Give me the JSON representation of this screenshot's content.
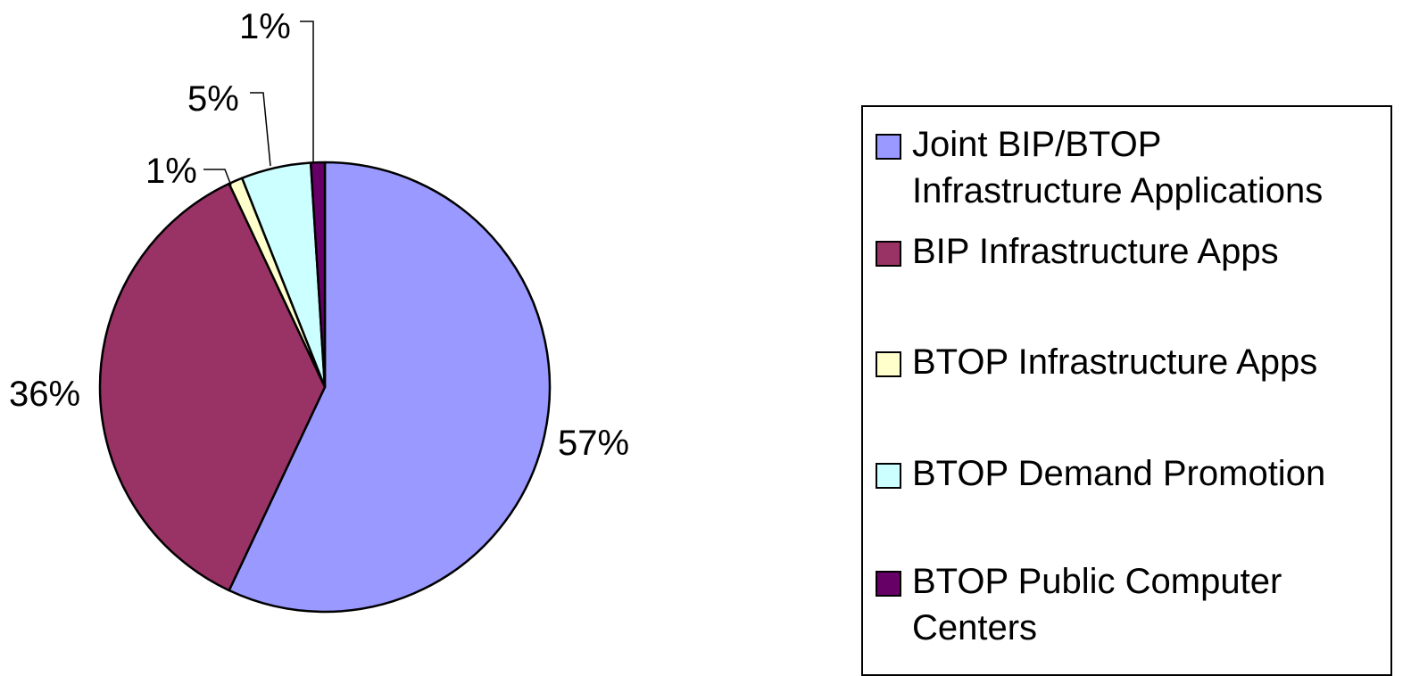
{
  "chart_data": {
    "type": "pie",
    "title": "",
    "legend_position": "right",
    "slices": [
      {
        "name": "Joint BIP/BTOP Infrastructure Applications",
        "value": 57,
        "label": "57%",
        "color": "#9999ff"
      },
      {
        "name": "BIP Infrastructure Apps",
        "value": 36,
        "label": "36%",
        "color": "#993366"
      },
      {
        "name": "BTOP Infrastructure Apps",
        "value": 1,
        "label": "1%",
        "color": "#ffffcc"
      },
      {
        "name": "BTOP Demand Promotion",
        "value": 5,
        "label": "5%",
        "color": "#ccffff"
      },
      {
        "name": "BTOP Public Computer Centers",
        "value": 1,
        "label": "1%",
        "color": "#660066"
      }
    ]
  },
  "legend": {
    "items": [
      {
        "label": "Joint BIP/BTOP Infrastructure Applications"
      },
      {
        "label": "BIP Infrastructure Apps"
      },
      {
        "label": "BTOP Infrastructure Apps"
      },
      {
        "label": "BTOP Demand Promotion"
      },
      {
        "label": "BTOP Public Computer Centers"
      }
    ]
  }
}
